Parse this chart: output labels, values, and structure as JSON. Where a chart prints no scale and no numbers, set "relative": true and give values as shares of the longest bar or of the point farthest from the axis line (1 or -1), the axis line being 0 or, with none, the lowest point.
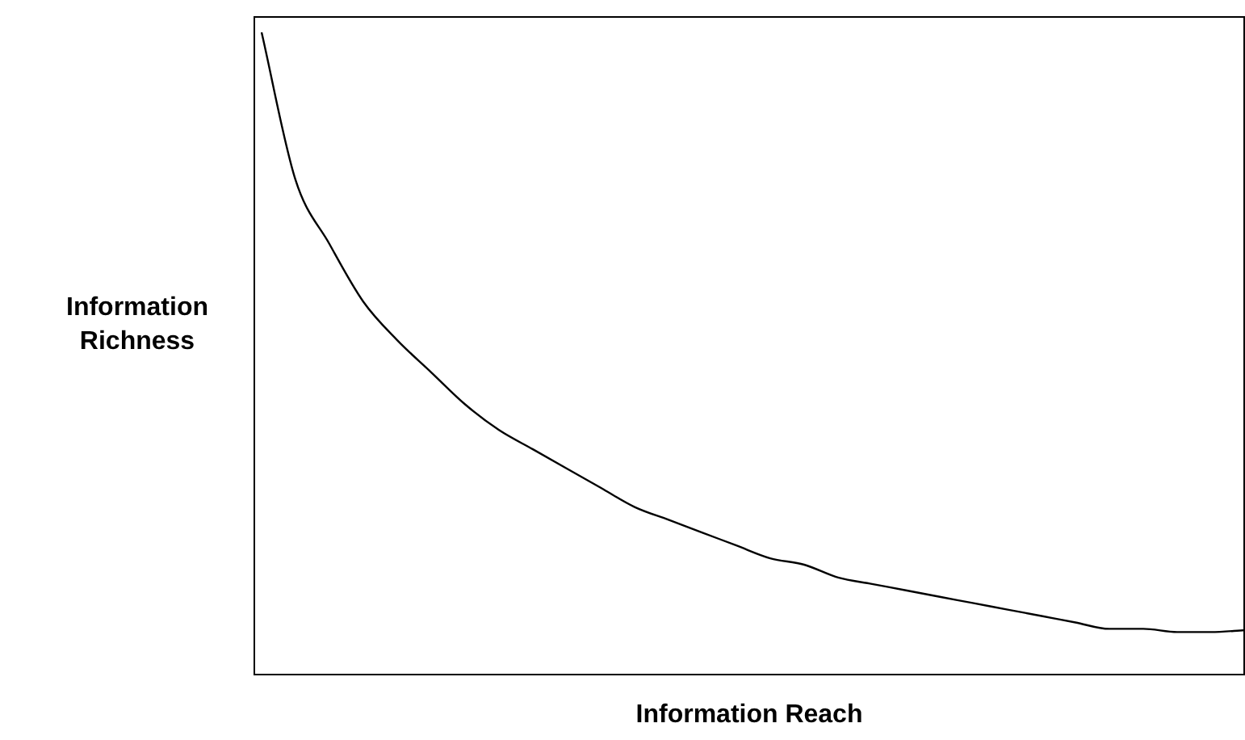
{
  "chart_data": {
    "type": "line",
    "xlabel": "Information Reach",
    "ylabel": "Information Richness",
    "relative": true,
    "legend": false,
    "categories": [
      null,
      null,
      null,
      null,
      null,
      null,
      null,
      null,
      null,
      null,
      null,
      null,
      null,
      null,
      null,
      null,
      null,
      null,
      null,
      null,
      null,
      null,
      null,
      null,
      null,
      null,
      null,
      null,
      null,
      null
    ],
    "series": [
      {
        "color": "#000000",
        "values": [
          1,
          0.77,
          0.67,
          0.58,
          0.52,
          0.47,
          0.42,
          0.38,
          0.35,
          0.32,
          0.29,
          0.26,
          0.24,
          0.22,
          0.2,
          0.18,
          0.17,
          0.15,
          0.14,
          0.13,
          0.12,
          0.11,
          0.1,
          0.09,
          0.08,
          0.07,
          0.07,
          0.065,
          0.065,
          0.068
        ]
      }
    ]
  }
}
